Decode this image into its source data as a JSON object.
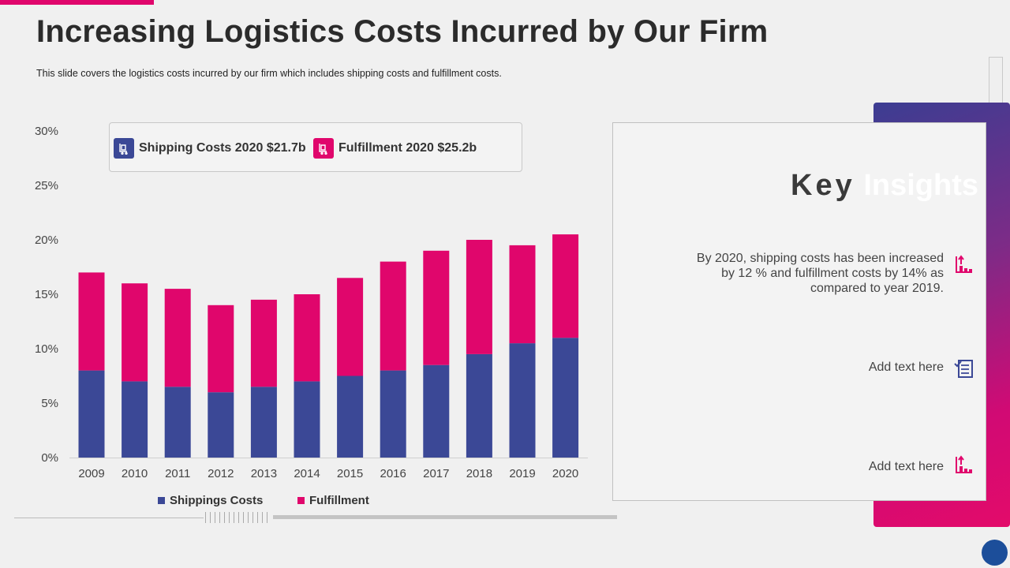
{
  "title": "Increasing Logistics Costs Incurred by Our Firm",
  "subtitle": "This slide covers the logistics costs incurred by our firm which includes shipping costs and fulfillment costs.",
  "legend_top": {
    "shipping": {
      "label": "Shipping Costs 2020 $21.7b",
      "icon": "trolley-icon",
      "color": "#3b4896"
    },
    "fulfillment": {
      "label": "Fulfillment 2020 $25.2b",
      "icon": "trolley-icon",
      "color": "#e0066c"
    }
  },
  "legend_bottom": {
    "shipping": "Shippings Costs",
    "fulfillment": "Fulfillment"
  },
  "colors": {
    "shipping": "#3b4896",
    "fulfillment": "#e0066c",
    "accent": "#e0066c"
  },
  "chart_data": {
    "type": "bar",
    "stacked": true,
    "title": "",
    "xlabel": "",
    "ylabel": "",
    "categories": [
      "2009",
      "2010",
      "2011",
      "2012",
      "2013",
      "2014",
      "2015",
      "2016",
      "2017",
      "2018",
      "2019",
      "2020"
    ],
    "series": [
      {
        "name": "Shippings Costs",
        "values": [
          8,
          7,
          6.5,
          6,
          6.5,
          7,
          7.5,
          8,
          8.5,
          9.5,
          10.5,
          11
        ]
      },
      {
        "name": "Fulfillment",
        "values": [
          9,
          9,
          9,
          8,
          8,
          8,
          9,
          10,
          10.5,
          10.5,
          9,
          9.5
        ]
      }
    ],
    "ylim": [
      0,
      30
    ],
    "yticks": [
      0,
      5,
      10,
      15,
      20,
      25,
      30
    ],
    "ytick_labels": [
      "0%",
      "5%",
      "10%",
      "15%",
      "20%",
      "25%",
      "30%"
    ],
    "legend": "bottom",
    "grid": false
  },
  "key_insights": {
    "heading_word1": "Key",
    "heading_word2": "Insights",
    "items": [
      {
        "text": "By 2020, shipping costs has been increased by 12 % and fulfillment  costs by 14% as compared to year 2019.",
        "icon": "bar-growth-icon"
      },
      {
        "text": "Add text here",
        "icon": "checklist-icon"
      },
      {
        "text": "Add text here",
        "icon": "bar-growth-icon"
      }
    ]
  }
}
